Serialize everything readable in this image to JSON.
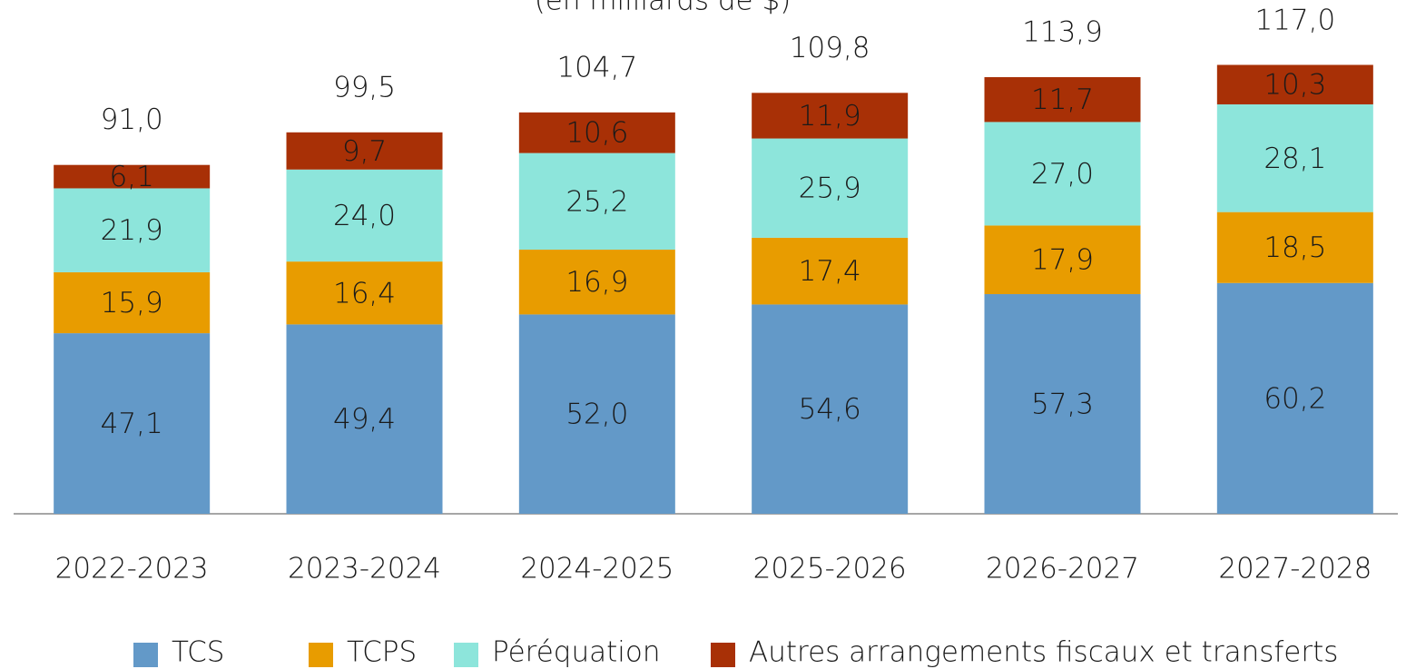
{
  "chart_data": {
    "type": "stacked_bar",
    "subtitle": "(en milliards de $)",
    "categories": [
      "2022-2023",
      "2023-2024",
      "2024-2025",
      "2025-2026",
      "2026-2027",
      "2027-2028"
    ],
    "series": [
      {
        "name": "TCS",
        "color": "#6399c8",
        "values": [
          47.1,
          49.4,
          52.0,
          54.6,
          57.3,
          60.2
        ],
        "value_labels": [
          "47,1",
          "49,4",
          "52,0",
          "54,6",
          "57,3",
          "60,2"
        ]
      },
      {
        "name": "TCPS",
        "color": "#e89c00",
        "values": [
          15.9,
          16.4,
          16.9,
          17.4,
          17.9,
          18.5
        ],
        "value_labels": [
          "15,9",
          "16,4",
          "16,9",
          "17,4",
          "17,9",
          "18,5"
        ]
      },
      {
        "name": "Péréquation",
        "color": "#8de5db",
        "values": [
          21.9,
          24.0,
          25.2,
          25.9,
          27.0,
          28.1
        ],
        "value_labels": [
          "21,9",
          "24,0",
          "25,2",
          "25,9",
          "27,0",
          "28,1"
        ]
      },
      {
        "name": "Autres arrangements fiscaux et transferts",
        "color": "#a83006",
        "values": [
          6.1,
          9.7,
          10.6,
          11.9,
          11.7,
          10.3
        ],
        "value_labels": [
          "6,1",
          "9,7",
          "10,6",
          "11,9",
          "11,7",
          "10,3"
        ]
      }
    ],
    "totals": {
      "values": [
        91.0,
        99.5,
        104.7,
        109.8,
        113.9,
        117.0
      ],
      "value_labels": [
        "91,0",
        "99,5",
        "104,7",
        "109,8",
        "113,9",
        "117,0"
      ]
    },
    "ylim": [
      0,
      130
    ]
  }
}
